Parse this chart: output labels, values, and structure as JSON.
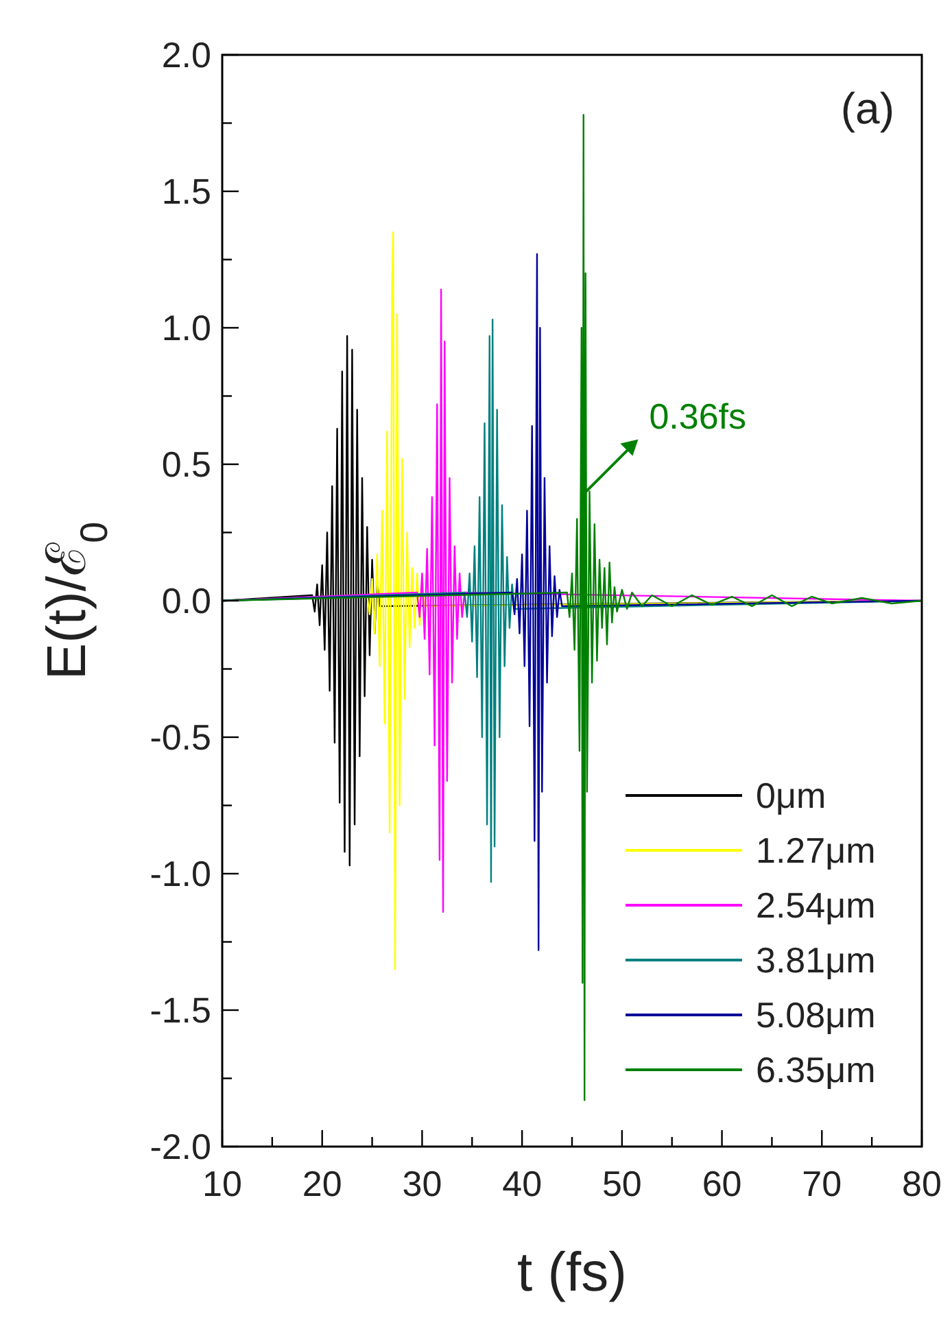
{
  "chart_data": {
    "type": "line",
    "xlabel": "t (fs)",
    "ylabel": "E(t)/ℰ$_{0}$",
    "xlim": [
      10,
      80
    ],
    "ylim": [
      -2,
      2
    ],
    "xticks": [
      10,
      20,
      30,
      40,
      50,
      60,
      70,
      80
    ],
    "yticks": [
      {
        "value": -2,
        "label": "-2.0"
      },
      {
        "value": -1.5,
        "label": "-1.5"
      },
      {
        "value": -1,
        "label": "-1.0"
      },
      {
        "value": -0.5,
        "label": "-0.5"
      },
      {
        "value": 0,
        "label": "0.0"
      },
      {
        "value": 0.5,
        "label": "0.5"
      },
      {
        "value": 1,
        "label": "1.0"
      },
      {
        "value": 1.5,
        "label": "1.5"
      },
      {
        "value": 2,
        "label": "2.0"
      }
    ],
    "grid": false,
    "legend": "bottom right",
    "line_style": "solid",
    "annotations": [
      "(a)",
      {
        "text": "0.36fs",
        "x": 46.4,
        "y": 0.4
      }
    ],
    "series": [
      {
        "name": "0μm",
        "color": "#000000",
        "x": [
          10,
          19,
          19.25,
          19.5,
          19.75,
          20,
          20.25,
          20.5,
          20.75,
          21,
          21.25,
          21.5,
          21.75,
          22,
          22.25,
          22.5,
          22.75,
          23,
          23.25,
          23.5,
          23.75,
          24,
          24.25,
          24.5,
          24.75,
          25,
          25.25,
          25.5,
          25.75,
          80
        ],
        "values": [
          0,
          0.02,
          -0.04,
          0.06,
          -0.09,
          0.13,
          -0.18,
          0.25,
          -0.33,
          0.42,
          -0.52,
          0.63,
          -0.74,
          0.84,
          -0.92,
          0.97,
          -0.97,
          0.92,
          -0.82,
          0.7,
          -0.57,
          0.45,
          -0.35,
          0.27,
          -0.2,
          0.15,
          -0.12,
          0.08,
          -0.02,
          0
        ]
      },
      {
        "name": "1.27μm",
        "color": "#ffff00",
        "x": [
          10,
          24.5,
          24.75,
          25,
          25.25,
          25.5,
          25.75,
          26,
          26.25,
          26.5,
          26.75,
          27,
          27.1,
          27.3,
          27.5,
          27.75,
          28,
          28.25,
          28.5,
          28.75,
          29,
          29.25,
          29.5,
          29.75,
          30,
          30.25,
          80
        ],
        "values": [
          0,
          0.02,
          -0.05,
          0.08,
          -0.12,
          0.17,
          -0.24,
          0.33,
          -0.45,
          0.62,
          -0.85,
          1.15,
          1.35,
          -1.35,
          1.05,
          -0.75,
          0.52,
          -0.36,
          0.25,
          -0.17,
          0.12,
          -0.1,
          0.1,
          -0.09,
          0.05,
          -0.02,
          0
        ]
      },
      {
        "name": "2.54μm",
        "color": "#ff00ff",
        "x": [
          10,
          29.5,
          29.75,
          30,
          30.25,
          30.5,
          30.75,
          31,
          31.25,
          31.5,
          31.75,
          31.9,
          32.1,
          32.25,
          32.5,
          32.75,
          33,
          33.25,
          33.5,
          33.75,
          34,
          34.25,
          80
        ],
        "values": [
          0,
          0.03,
          -0.06,
          0.1,
          -0.14,
          0.19,
          -0.27,
          0.38,
          -0.53,
          0.72,
          -0.95,
          1.14,
          -1.14,
          0.95,
          -0.66,
          0.45,
          -0.3,
          0.2,
          -0.14,
          0.1,
          -0.06,
          0.03,
          0
        ]
      },
      {
        "name": "3.81μm",
        "color": "#008080",
        "x": [
          10,
          34.25,
          34.5,
          34.75,
          35,
          35.25,
          35.5,
          35.75,
          36,
          36.25,
          36.5,
          36.75,
          36.9,
          37.05,
          37.25,
          37.5,
          37.75,
          38,
          38.25,
          38.5,
          38.75,
          39,
          39.25,
          80
        ],
        "values": [
          0,
          0.03,
          -0.06,
          0.1,
          -0.15,
          0.2,
          -0.28,
          0.38,
          -0.5,
          0.65,
          -0.82,
          0.97,
          -1.03,
          1.03,
          -0.9,
          0.7,
          -0.5,
          0.35,
          -0.24,
          0.16,
          -0.1,
          0.06,
          -0.03,
          0
        ]
      },
      {
        "name": "5.08μm",
        "color": "#000099",
        "x": [
          10,
          39,
          39.25,
          39.5,
          39.75,
          40,
          40.25,
          40.5,
          40.75,
          41,
          41.25,
          41.5,
          41.65,
          41.8,
          42,
          42.25,
          42.5,
          42.75,
          43,
          43.25,
          43.5,
          43.75,
          44,
          80
        ],
        "values": [
          0,
          0.03,
          -0.05,
          0.08,
          -0.12,
          0.17,
          -0.24,
          0.33,
          -0.46,
          0.64,
          -0.88,
          1.27,
          -1.28,
          1,
          -0.7,
          0.45,
          -0.3,
          0.2,
          -0.13,
          0.09,
          -0.06,
          0.04,
          -0.02,
          0
        ]
      },
      {
        "name": "6.35μm",
        "color": "#008000",
        "x": [
          10,
          44.5,
          44.75,
          45,
          45.25,
          45.5,
          45.75,
          45.95,
          46.05,
          46.15,
          46.25,
          46.35,
          46.5,
          46.75,
          47,
          47.25,
          47.5,
          47.75,
          48,
          48.25,
          48.5,
          48.75,
          49,
          49.25,
          49.5,
          50,
          50.5,
          51,
          52,
          53,
          55,
          57,
          59,
          61,
          63,
          65,
          67,
          69,
          71,
          74,
          77,
          80
        ],
        "values": [
          0,
          0.03,
          -0.06,
          0.1,
          -0.18,
          0.3,
          -0.55,
          1,
          -1.4,
          1.78,
          -1.83,
          1.2,
          -0.7,
          0.4,
          -0.3,
          0.28,
          -0.22,
          0.15,
          -0.1,
          0.12,
          -0.16,
          0.14,
          -0.08,
          0.05,
          -0.04,
          0.04,
          -0.03,
          0.03,
          -0.02,
          0.02,
          -0.02,
          0.02,
          -0.015,
          0.015,
          -0.02,
          0.02,
          -0.02,
          0.015,
          -0.01,
          0.01,
          -0.01,
          0
        ]
      }
    ]
  }
}
